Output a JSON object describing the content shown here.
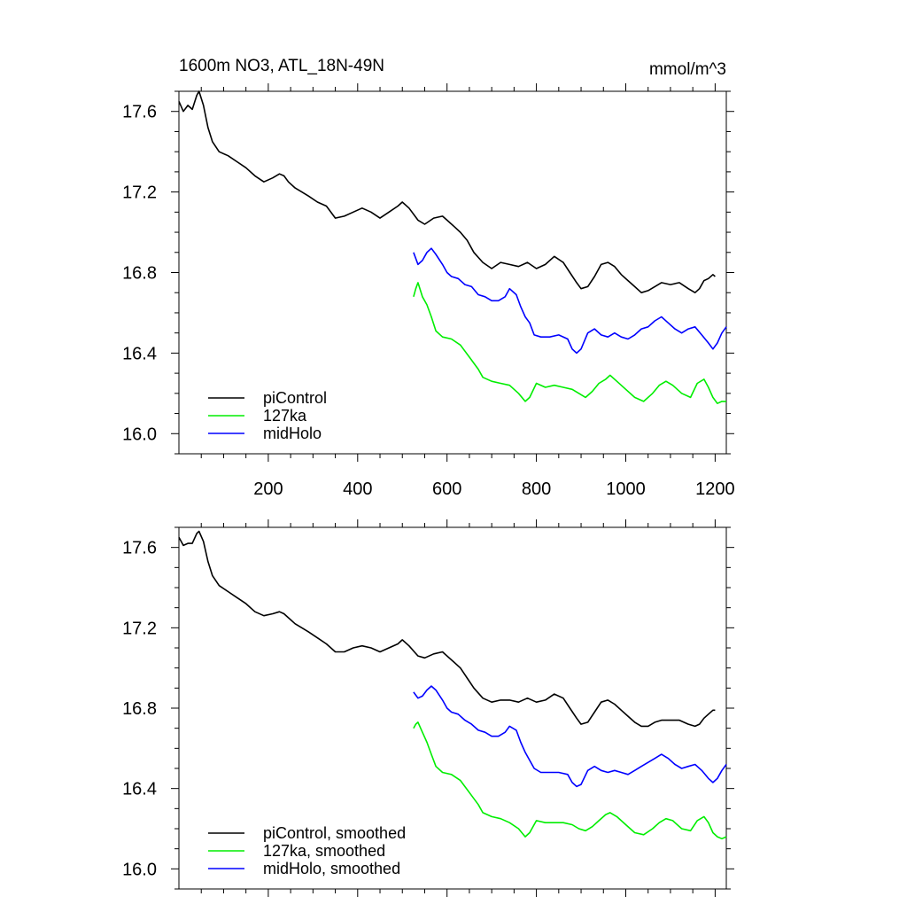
{
  "chart_data": [
    {
      "type": "line",
      "title": "1600m NO3, ATL_18N-49N",
      "units": "mmol/m^3",
      "xlim": [
        0,
        1225
      ],
      "ylim": [
        15.9,
        17.7
      ],
      "xticks": [
        200,
        400,
        600,
        800,
        1000,
        1200
      ],
      "xtick_labels": [
        "200",
        "400",
        "600",
        "800",
        "1000",
        "1200"
      ],
      "yticks": [
        16.0,
        16.4,
        16.8,
        17.2,
        17.6
      ],
      "ytick_labels": [
        "16.0",
        "16.4",
        "16.8",
        "17.2",
        "17.6"
      ],
      "legend_position": "bottom-left",
      "smoothed": false,
      "series": [
        {
          "name": "piControl",
          "color": "#000000",
          "x": [
            0,
            10,
            20,
            30,
            40,
            45,
            55,
            65,
            75,
            90,
            110,
            130,
            150,
            170,
            190,
            210,
            225,
            235,
            245,
            260,
            275,
            290,
            310,
            330,
            350,
            370,
            390,
            410,
            430,
            450,
            470,
            490,
            500,
            515,
            535,
            550,
            570,
            590,
            600,
            615,
            630,
            645,
            660,
            680,
            700,
            720,
            740,
            760,
            780,
            800,
            820,
            840,
            860,
            875,
            890,
            900,
            915,
            930,
            945,
            960,
            975,
            990,
            1005,
            1020,
            1035,
            1050,
            1065,
            1080,
            1100,
            1120,
            1140,
            1155,
            1165,
            1175,
            1185,
            1195,
            1200
          ],
          "y": [
            17.65,
            17.6,
            17.63,
            17.61,
            17.68,
            17.7,
            17.63,
            17.52,
            17.45,
            17.4,
            17.38,
            17.35,
            17.32,
            17.28,
            17.25,
            17.27,
            17.29,
            17.28,
            17.25,
            17.22,
            17.2,
            17.18,
            17.15,
            17.13,
            17.07,
            17.08,
            17.1,
            17.12,
            17.1,
            17.07,
            17.1,
            17.13,
            17.15,
            17.12,
            17.06,
            17.04,
            17.07,
            17.08,
            17.06,
            17.03,
            17.0,
            16.96,
            16.9,
            16.85,
            16.82,
            16.85,
            16.84,
            16.83,
            16.85,
            16.82,
            16.84,
            16.88,
            16.85,
            16.8,
            16.75,
            16.72,
            16.73,
            16.78,
            16.84,
            16.85,
            16.83,
            16.79,
            16.76,
            16.73,
            16.7,
            16.71,
            16.73,
            16.75,
            16.74,
            16.75,
            16.72,
            16.7,
            16.72,
            16.76,
            16.77,
            16.79,
            16.78
          ]
        },
        {
          "name": "127ka",
          "color": "#00ee00",
          "x": [
            525,
            530,
            535,
            545,
            555,
            565,
            575,
            590,
            610,
            630,
            650,
            670,
            680,
            700,
            720,
            740,
            760,
            775,
            785,
            800,
            820,
            840,
            860,
            880,
            895,
            910,
            925,
            940,
            955,
            965,
            980,
            1000,
            1020,
            1040,
            1060,
            1075,
            1090,
            1105,
            1125,
            1145,
            1160,
            1175,
            1185,
            1195,
            1205,
            1215,
            1225
          ],
          "y": [
            16.68,
            16.72,
            16.75,
            16.68,
            16.64,
            16.58,
            16.51,
            16.48,
            16.47,
            16.44,
            16.38,
            16.32,
            16.28,
            16.26,
            16.25,
            16.24,
            16.2,
            16.16,
            16.18,
            16.25,
            16.23,
            16.24,
            16.23,
            16.22,
            16.2,
            16.18,
            16.21,
            16.25,
            16.27,
            16.29,
            16.26,
            16.22,
            16.18,
            16.16,
            16.2,
            16.24,
            16.26,
            16.24,
            16.2,
            16.18,
            16.25,
            16.27,
            16.23,
            16.18,
            16.15,
            16.16,
            16.16
          ]
        },
        {
          "name": "midHolo",
          "color": "#0000ff",
          "x": [
            525,
            535,
            545,
            555,
            565,
            575,
            590,
            600,
            610,
            625,
            640,
            655,
            670,
            685,
            700,
            715,
            730,
            740,
            755,
            765,
            775,
            785,
            795,
            810,
            830,
            850,
            870,
            880,
            890,
            900,
            915,
            930,
            945,
            960,
            975,
            990,
            1005,
            1020,
            1035,
            1050,
            1065,
            1080,
            1095,
            1110,
            1125,
            1140,
            1155,
            1170,
            1185,
            1195,
            1205,
            1215,
            1225
          ],
          "y": [
            16.9,
            16.84,
            16.86,
            16.9,
            16.92,
            16.89,
            16.84,
            16.8,
            16.78,
            16.77,
            16.74,
            16.73,
            16.69,
            16.68,
            16.66,
            16.66,
            16.68,
            16.72,
            16.69,
            16.63,
            16.58,
            16.55,
            16.49,
            16.48,
            16.48,
            16.49,
            16.47,
            16.42,
            16.4,
            16.42,
            16.5,
            16.52,
            16.49,
            16.48,
            16.5,
            16.48,
            16.47,
            16.49,
            16.52,
            16.53,
            16.56,
            16.58,
            16.55,
            16.52,
            16.5,
            16.52,
            16.53,
            16.49,
            16.45,
            16.42,
            16.45,
            16.5,
            16.53
          ]
        }
      ]
    },
    {
      "type": "line",
      "title": "",
      "xlim": [
        0,
        1225
      ],
      "ylim": [
        15.9,
        17.7
      ],
      "xticks": [
        200,
        400,
        600,
        800,
        1000,
        1200
      ],
      "yticks": [
        16.0,
        16.4,
        16.8,
        17.2,
        17.6
      ],
      "ytick_labels": [
        "16.0",
        "16.4",
        "16.8",
        "17.2",
        "17.6"
      ],
      "legend_position": "bottom-left",
      "smoothed": true,
      "series": [
        {
          "name": "piControl, smoothed",
          "color": "#000000",
          "x": [
            0,
            10,
            20,
            30,
            40,
            45,
            55,
            65,
            75,
            90,
            110,
            130,
            150,
            170,
            190,
            210,
            225,
            235,
            245,
            260,
            275,
            290,
            310,
            330,
            350,
            370,
            390,
            410,
            430,
            450,
            470,
            490,
            500,
            515,
            535,
            550,
            570,
            590,
            600,
            615,
            630,
            645,
            660,
            680,
            700,
            720,
            740,
            760,
            780,
            800,
            820,
            840,
            860,
            875,
            890,
            900,
            915,
            930,
            945,
            960,
            975,
            990,
            1005,
            1020,
            1035,
            1050,
            1065,
            1080,
            1100,
            1120,
            1140,
            1155,
            1165,
            1175,
            1185,
            1195,
            1200
          ],
          "y": [
            17.65,
            17.61,
            17.62,
            17.62,
            17.67,
            17.68,
            17.63,
            17.53,
            17.46,
            17.41,
            17.38,
            17.35,
            17.32,
            17.28,
            17.26,
            17.27,
            17.28,
            17.27,
            17.25,
            17.22,
            17.2,
            17.18,
            17.15,
            17.12,
            17.08,
            17.08,
            17.1,
            17.11,
            17.1,
            17.08,
            17.1,
            17.12,
            17.14,
            17.11,
            17.06,
            17.05,
            17.07,
            17.08,
            17.06,
            17.03,
            17.0,
            16.95,
            16.9,
            16.85,
            16.83,
            16.84,
            16.84,
            16.83,
            16.85,
            16.83,
            16.84,
            16.87,
            16.85,
            16.8,
            16.75,
            16.72,
            16.73,
            16.78,
            16.83,
            16.84,
            16.82,
            16.79,
            16.76,
            16.73,
            16.71,
            16.71,
            16.73,
            16.74,
            16.74,
            16.74,
            16.72,
            16.71,
            16.72,
            16.75,
            16.77,
            16.79,
            16.79
          ]
        },
        {
          "name": "127ka, smoothed",
          "color": "#00ee00",
          "x": [
            525,
            530,
            535,
            545,
            555,
            565,
            575,
            590,
            610,
            630,
            650,
            670,
            680,
            700,
            720,
            740,
            760,
            775,
            785,
            800,
            820,
            840,
            860,
            880,
            895,
            910,
            925,
            940,
            955,
            965,
            980,
            1000,
            1020,
            1040,
            1060,
            1075,
            1090,
            1105,
            1125,
            1145,
            1160,
            1175,
            1185,
            1195,
            1205,
            1215,
            1225
          ],
          "y": [
            16.7,
            16.72,
            16.73,
            16.68,
            16.63,
            16.57,
            16.51,
            16.48,
            16.47,
            16.44,
            16.38,
            16.32,
            16.28,
            16.26,
            16.25,
            16.23,
            16.2,
            16.16,
            16.18,
            16.24,
            16.23,
            16.23,
            16.23,
            16.22,
            16.2,
            16.19,
            16.21,
            16.24,
            16.27,
            16.28,
            16.26,
            16.22,
            16.18,
            16.17,
            16.2,
            16.23,
            16.25,
            16.24,
            16.2,
            16.19,
            16.24,
            16.26,
            16.23,
            16.18,
            16.16,
            16.15,
            16.16
          ]
        },
        {
          "name": "midHolo, smoothed",
          "color": "#0000ff",
          "x": [
            525,
            535,
            545,
            555,
            565,
            575,
            590,
            600,
            610,
            625,
            640,
            655,
            670,
            685,
            700,
            715,
            730,
            740,
            755,
            765,
            775,
            785,
            795,
            810,
            830,
            850,
            870,
            880,
            890,
            900,
            915,
            930,
            945,
            960,
            975,
            990,
            1005,
            1020,
            1035,
            1050,
            1065,
            1080,
            1095,
            1110,
            1125,
            1140,
            1155,
            1170,
            1185,
            1195,
            1205,
            1215,
            1225
          ],
          "y": [
            16.88,
            16.85,
            16.86,
            16.89,
            16.91,
            16.89,
            16.84,
            16.8,
            16.78,
            16.77,
            16.74,
            16.72,
            16.69,
            16.68,
            16.66,
            16.66,
            16.68,
            16.71,
            16.69,
            16.63,
            16.58,
            16.54,
            16.5,
            16.48,
            16.48,
            16.48,
            16.47,
            16.43,
            16.41,
            16.42,
            16.49,
            16.51,
            16.49,
            16.48,
            16.49,
            16.48,
            16.47,
            16.49,
            16.51,
            16.53,
            16.55,
            16.57,
            16.55,
            16.52,
            16.5,
            16.51,
            16.52,
            16.49,
            16.45,
            16.43,
            16.45,
            16.49,
            16.52
          ]
        }
      ]
    }
  ]
}
